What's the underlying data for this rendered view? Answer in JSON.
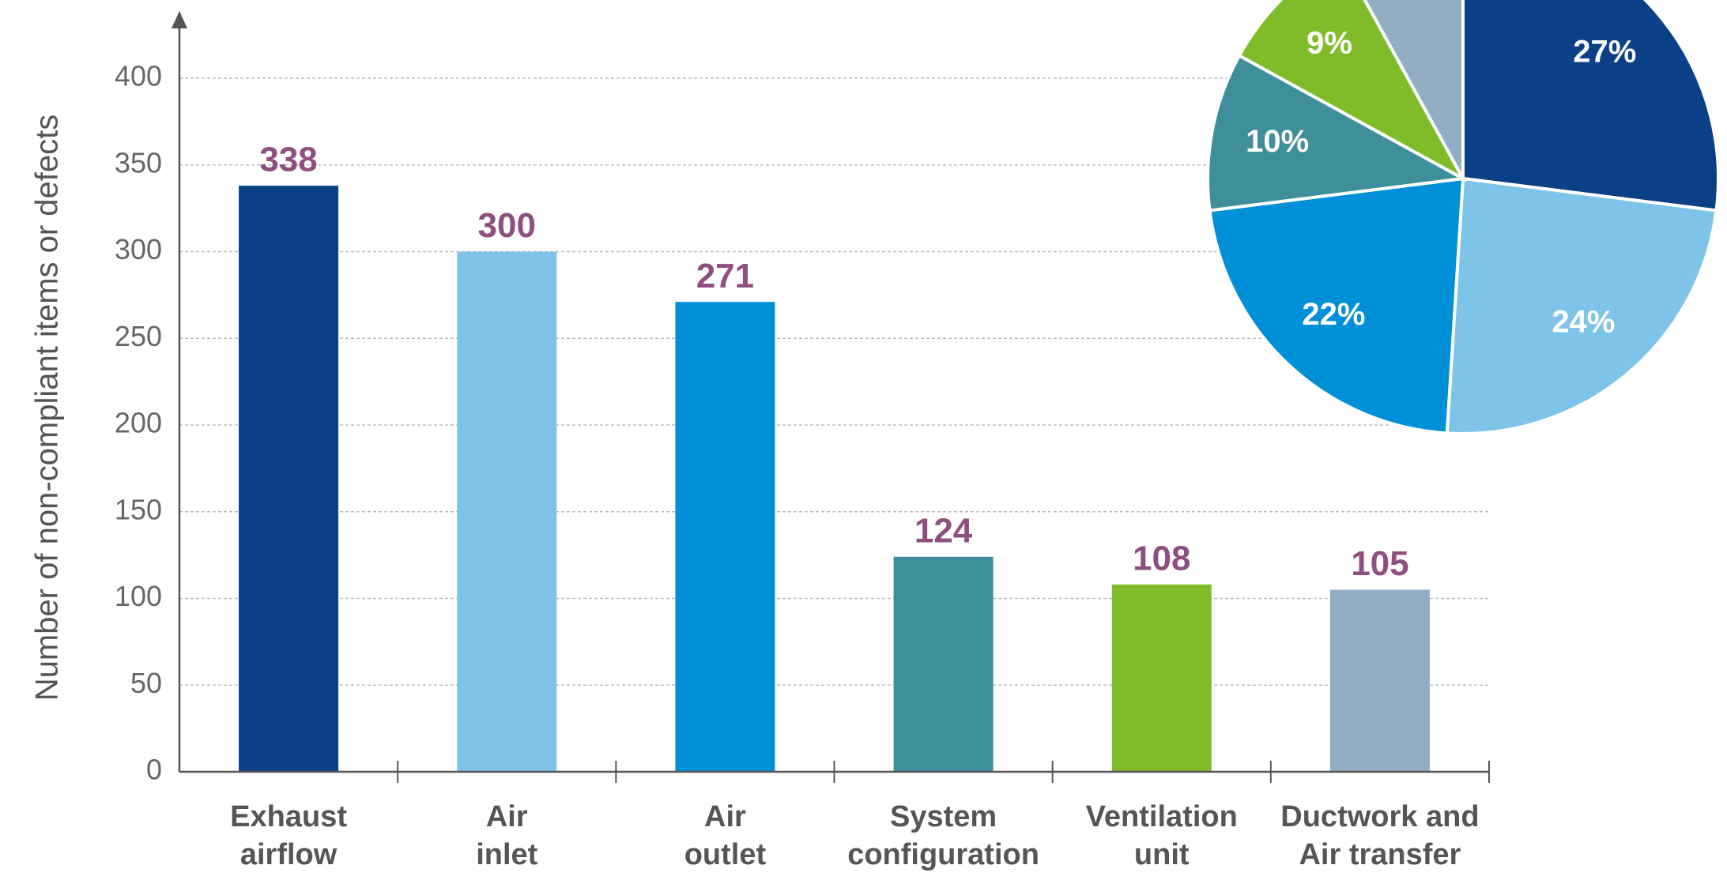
{
  "chart_data": [
    {
      "type": "bar",
      "y_label": "Number of non-compliant items or defects",
      "categories": [
        "Exhaust\nairflow",
        "Air\ninlet",
        "Air\noutlet",
        "System\nconfiguration",
        "Ventilation\nunit",
        "Ductwork and\nAir transfer"
      ],
      "values": [
        338,
        300,
        271,
        124,
        108,
        105
      ],
      "colors": [
        "#0b3f86",
        "#7ec4e8",
        "#0090d8",
        "#3f8f9b",
        "#80bc2a",
        "#93aec4"
      ],
      "value_label_color": "#8e4f80",
      "ylim": [
        0,
        400
      ],
      "yticks": [
        0,
        50,
        100,
        150,
        200,
        250,
        300,
        350,
        400
      ],
      "grid": true
    },
    {
      "type": "pie",
      "values": [
        27,
        24,
        22,
        10,
        9,
        8
      ],
      "value_labels": [
        "27%",
        "24%",
        "22%",
        "10%",
        "9%",
        null
      ],
      "colors": [
        "#0b3f86",
        "#7ec4e8",
        "#0090d8",
        "#3f8f9b",
        "#80bc2a",
        "#93aec4"
      ]
    }
  ]
}
